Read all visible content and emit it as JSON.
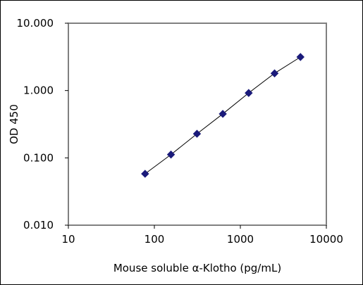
{
  "chart_data": {
    "type": "scatter",
    "title": "",
    "xlabel": "Mouse soluble α-Klotho (pg/mL)",
    "ylabel": "OD 450",
    "x_scale": "log",
    "y_scale": "log",
    "xlim": [
      10,
      10000
    ],
    "ylim": [
      0.01,
      10
    ],
    "x_ticks": [
      10,
      100,
      1000,
      10000
    ],
    "x_tick_labels": [
      "10",
      "100",
      "1000",
      "10000"
    ],
    "y_ticks": [
      0.01,
      0.1,
      1,
      10
    ],
    "y_tick_labels": [
      "0.010",
      "0.100",
      "1.000",
      "10.000"
    ],
    "grid": false,
    "legend": "none",
    "marker": "diamond",
    "marker_color": "#1a1a7a",
    "line_color": "#000000",
    "series": [
      {
        "x": [
          78,
          156,
          313,
          625,
          1250,
          2500,
          5000
        ],
        "y": [
          0.058,
          0.112,
          0.228,
          0.45,
          0.92,
          1.8,
          3.15
        ]
      }
    ]
  }
}
